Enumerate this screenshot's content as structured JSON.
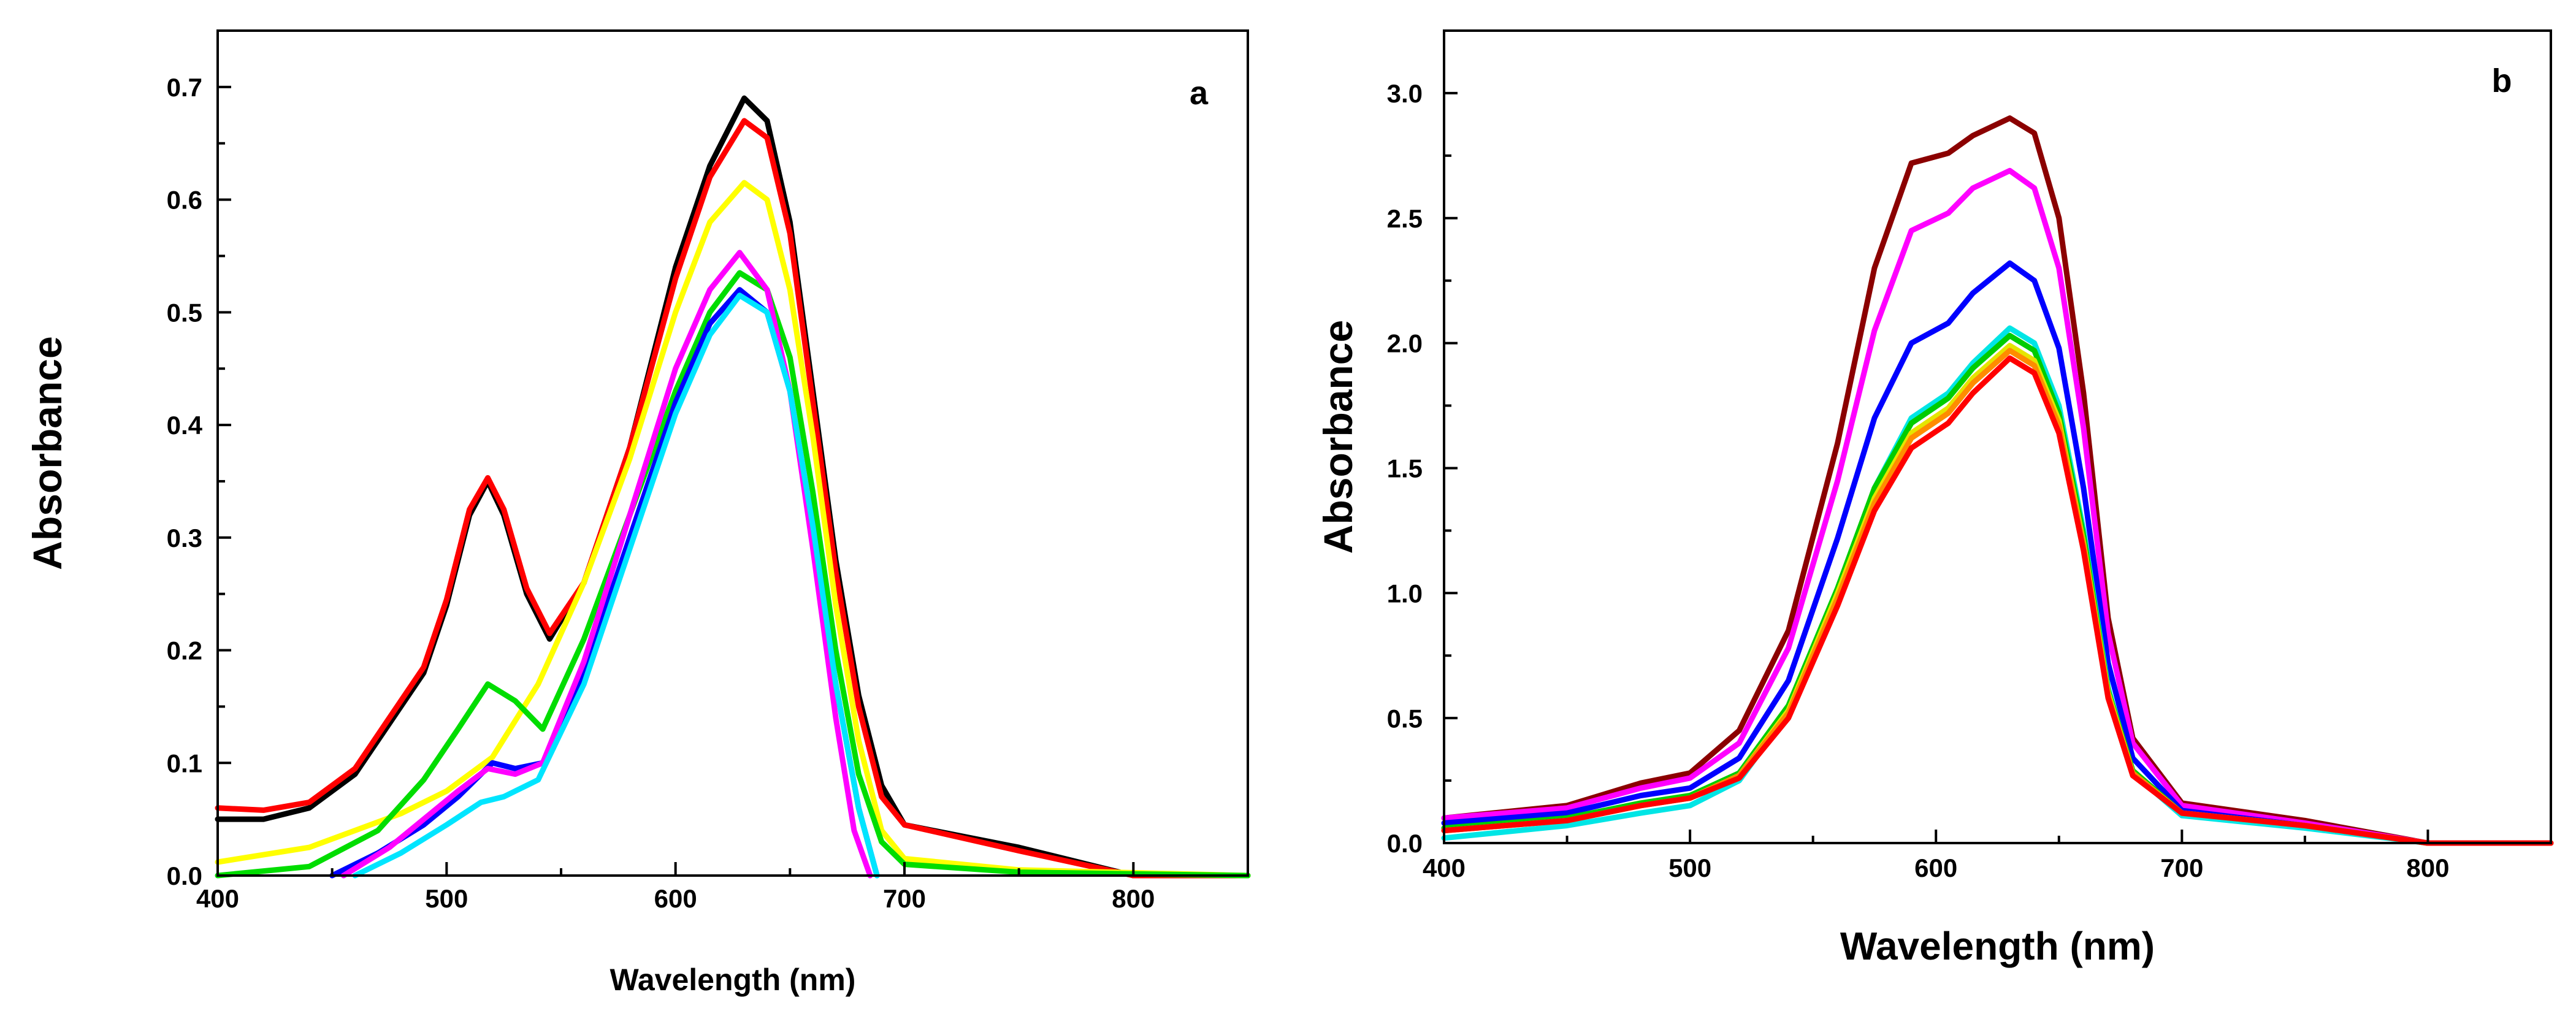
{
  "chart_data": [
    {
      "type": "line",
      "panel_label": "a",
      "xlabel": "Wavelength (nm)",
      "ylabel": "Absorbance",
      "xlim": [
        400,
        850
      ],
      "ylim": [
        0,
        0.75
      ],
      "xticks": [
        400,
        500,
        600,
        700,
        800
      ],
      "xtick_labels": [
        "400",
        "500",
        "600",
        "700",
        "800"
      ],
      "yticks": [
        0.0,
        0.1,
        0.2,
        0.3,
        0.4,
        0.5,
        0.6,
        0.7
      ],
      "ytick_labels": [
        "0.0",
        "0.1",
        "0.2",
        "0.3",
        "0.4",
        "0.5",
        "0.6",
        "0.7"
      ],
      "grid": false,
      "series": [
        {
          "name": "black",
          "color": "#000000",
          "x": [
            400,
            420,
            440,
            460,
            480,
            490,
            500,
            510,
            518,
            525,
            535,
            545,
            560,
            580,
            600,
            615,
            630,
            640,
            650,
            660,
            670,
            680,
            690,
            700,
            750,
            800,
            850
          ],
          "y": [
            0.05,
            0.05,
            0.06,
            0.09,
            0.15,
            0.18,
            0.24,
            0.32,
            0.35,
            0.32,
            0.25,
            0.21,
            0.26,
            0.38,
            0.54,
            0.63,
            0.69,
            0.67,
            0.58,
            0.43,
            0.28,
            0.16,
            0.08,
            0.045,
            0.025,
            0.0,
            0.0
          ]
        },
        {
          "name": "red",
          "color": "#ff0000",
          "x": [
            400,
            420,
            440,
            460,
            480,
            490,
            500,
            510,
            518,
            525,
            535,
            545,
            560,
            580,
            600,
            615,
            630,
            640,
            650,
            660,
            670,
            680,
            690,
            700,
            750,
            800,
            850
          ],
          "y": [
            0.06,
            0.058,
            0.065,
            0.095,
            0.155,
            0.185,
            0.245,
            0.325,
            0.353,
            0.325,
            0.255,
            0.215,
            0.26,
            0.38,
            0.53,
            0.62,
            0.67,
            0.655,
            0.57,
            0.42,
            0.27,
            0.15,
            0.07,
            0.045,
            0.022,
            0.0,
            0.0
          ]
        },
        {
          "name": "yellow",
          "color": "#ffff00",
          "x": [
            400,
            440,
            480,
            500,
            520,
            540,
            560,
            580,
            600,
            615,
            630,
            640,
            650,
            660,
            670,
            680,
            690,
            700,
            750,
            850
          ],
          "y": [
            0.012,
            0.025,
            0.055,
            0.075,
            0.105,
            0.17,
            0.26,
            0.37,
            0.5,
            0.58,
            0.615,
            0.6,
            0.52,
            0.39,
            0.24,
            0.12,
            0.04,
            0.015,
            0.005,
            0.0
          ]
        },
        {
          "name": "green",
          "color": "#00dd00",
          "x": [
            400,
            440,
            470,
            490,
            505,
            518,
            530,
            542,
            560,
            580,
            600,
            615,
            628,
            640,
            650,
            660,
            670,
            680,
            690,
            700,
            750,
            850
          ],
          "y": [
            0.0,
            0.008,
            0.04,
            0.085,
            0.13,
            0.17,
            0.155,
            0.13,
            0.21,
            0.32,
            0.43,
            0.5,
            0.535,
            0.52,
            0.46,
            0.34,
            0.2,
            0.09,
            0.03,
            0.01,
            0.003,
            0.0
          ]
        },
        {
          "name": "blue",
          "color": "#0000ff",
          "x": [
            450,
            470,
            490,
            505,
            520,
            530,
            542,
            560,
            580,
            600,
            615,
            628,
            640,
            650,
            660,
            670,
            680,
            688
          ],
          "y": [
            0.0,
            0.02,
            0.045,
            0.07,
            0.1,
            0.095,
            0.1,
            0.18,
            0.3,
            0.42,
            0.49,
            0.52,
            0.5,
            0.43,
            0.31,
            0.17,
            0.06,
            0.0
          ]
        },
        {
          "name": "magenta",
          "color": "#ff00ff",
          "x": [
            455,
            475,
            490,
            505,
            518,
            530,
            542,
            560,
            580,
            600,
            615,
            628,
            640,
            650,
            660,
            670,
            678,
            685
          ],
          "y": [
            0.0,
            0.025,
            0.05,
            0.075,
            0.095,
            0.09,
            0.1,
            0.19,
            0.32,
            0.45,
            0.52,
            0.553,
            0.52,
            0.43,
            0.29,
            0.14,
            0.04,
            0.0
          ]
        },
        {
          "name": "cyan",
          "color": "#00e5ff",
          "x": [
            460,
            480,
            500,
            515,
            525,
            540,
            560,
            580,
            600,
            615,
            628,
            640,
            650,
            660,
            670,
            680,
            688
          ],
          "y": [
            0.0,
            0.02,
            0.045,
            0.065,
            0.07,
            0.085,
            0.17,
            0.29,
            0.41,
            0.48,
            0.515,
            0.5,
            0.43,
            0.31,
            0.17,
            0.06,
            0.0
          ]
        }
      ]
    },
    {
      "type": "line",
      "panel_label": "b",
      "xlabel": "Wavelength (nm)",
      "ylabel": "Absorbance",
      "xlim": [
        400,
        850
      ],
      "ylim": [
        0,
        3.25
      ],
      "xticks": [
        400,
        500,
        600,
        700,
        800
      ],
      "xtick_labels": [
        "400",
        "500",
        "600",
        "700",
        "800"
      ],
      "yticks": [
        0.0,
        0.5,
        1.0,
        1.5,
        2.0,
        2.5,
        3.0
      ],
      "ytick_labels": [
        "0.0",
        "0.5",
        "1.0",
        "1.5",
        "2.0",
        "2.5",
        "3.0"
      ],
      "grid": false,
      "series": [
        {
          "name": "dark red",
          "color": "#8b0000",
          "x": [
            400,
            450,
            480,
            500,
            520,
            540,
            560,
            575,
            590,
            605,
            615,
            630,
            640,
            650,
            660,
            670,
            680,
            700,
            750,
            800,
            850
          ],
          "y": [
            0.1,
            0.15,
            0.24,
            0.28,
            0.45,
            0.85,
            1.6,
            2.3,
            2.72,
            2.76,
            2.83,
            2.9,
            2.84,
            2.5,
            1.8,
            0.9,
            0.42,
            0.16,
            0.09,
            0.0,
            0.0
          ]
        },
        {
          "name": "magenta",
          "color": "#ff00ff",
          "x": [
            400,
            450,
            480,
            500,
            520,
            540,
            560,
            575,
            590,
            605,
            615,
            630,
            640,
            650,
            660,
            670,
            680,
            700,
            750,
            800,
            850
          ],
          "y": [
            0.1,
            0.14,
            0.22,
            0.26,
            0.4,
            0.78,
            1.45,
            2.05,
            2.45,
            2.52,
            2.62,
            2.69,
            2.62,
            2.3,
            1.66,
            0.84,
            0.4,
            0.15,
            0.08,
            0.0,
            0.0
          ]
        },
        {
          "name": "blue",
          "color": "#0000ff",
          "x": [
            400,
            450,
            480,
            500,
            520,
            540,
            560,
            575,
            590,
            605,
            615,
            630,
            640,
            650,
            660,
            670,
            680,
            700,
            750,
            800,
            850
          ],
          "y": [
            0.08,
            0.12,
            0.19,
            0.22,
            0.34,
            0.65,
            1.22,
            1.7,
            2.0,
            2.08,
            2.2,
            2.32,
            2.25,
            1.98,
            1.42,
            0.72,
            0.34,
            0.13,
            0.07,
            0.0,
            0.0
          ]
        },
        {
          "name": "cyan",
          "color": "#00e5e5",
          "x": [
            400,
            450,
            480,
            500,
            520,
            540,
            560,
            575,
            590,
            605,
            615,
            630,
            640,
            650,
            660,
            670,
            680,
            700,
            750,
            800,
            850
          ],
          "y": [
            0.02,
            0.07,
            0.12,
            0.15,
            0.25,
            0.52,
            1.0,
            1.42,
            1.7,
            1.8,
            1.92,
            2.06,
            2.0,
            1.75,
            1.25,
            0.62,
            0.28,
            0.11,
            0.06,
            0.0,
            0.0
          ]
        },
        {
          "name": "green",
          "color": "#00cc00",
          "x": [
            400,
            450,
            480,
            500,
            520,
            540,
            560,
            575,
            590,
            605,
            615,
            630,
            640,
            650,
            660,
            670,
            680,
            700,
            750,
            800,
            850
          ],
          "y": [
            0.06,
            0.1,
            0.16,
            0.19,
            0.28,
            0.55,
            1.02,
            1.42,
            1.68,
            1.78,
            1.9,
            2.03,
            1.97,
            1.72,
            1.23,
            0.61,
            0.29,
            0.12,
            0.07,
            0.0,
            0.0
          ]
        },
        {
          "name": "yellow",
          "color": "#e5e500",
          "x": [
            400,
            450,
            480,
            500,
            520,
            540,
            560,
            575,
            590,
            605,
            615,
            630,
            640,
            650,
            660,
            670,
            680,
            700,
            750,
            800,
            850
          ],
          "y": [
            0.05,
            0.09,
            0.15,
            0.18,
            0.27,
            0.53,
            1.0,
            1.38,
            1.64,
            1.74,
            1.86,
            1.99,
            1.93,
            1.69,
            1.2,
            0.6,
            0.28,
            0.12,
            0.07,
            0.0,
            0.0
          ]
        },
        {
          "name": "orange",
          "color": "#ff8c00",
          "x": [
            400,
            450,
            480,
            500,
            520,
            540,
            560,
            575,
            590,
            605,
            615,
            630,
            640,
            650,
            660,
            670,
            680,
            700,
            750,
            800,
            850
          ],
          "y": [
            0.05,
            0.09,
            0.15,
            0.18,
            0.27,
            0.52,
            0.98,
            1.36,
            1.62,
            1.72,
            1.84,
            1.97,
            1.91,
            1.67,
            1.19,
            0.59,
            0.28,
            0.12,
            0.07,
            0.0,
            0.0
          ]
        },
        {
          "name": "red",
          "color": "#ff0000",
          "x": [
            400,
            450,
            480,
            500,
            520,
            540,
            560,
            575,
            590,
            605,
            615,
            630,
            640,
            650,
            660,
            670,
            680,
            700,
            750,
            800,
            850
          ],
          "y": [
            0.05,
            0.09,
            0.15,
            0.18,
            0.26,
            0.5,
            0.95,
            1.33,
            1.58,
            1.68,
            1.8,
            1.94,
            1.88,
            1.64,
            1.17,
            0.58,
            0.27,
            0.12,
            0.07,
            0.0,
            0.0
          ]
        }
      ]
    }
  ]
}
